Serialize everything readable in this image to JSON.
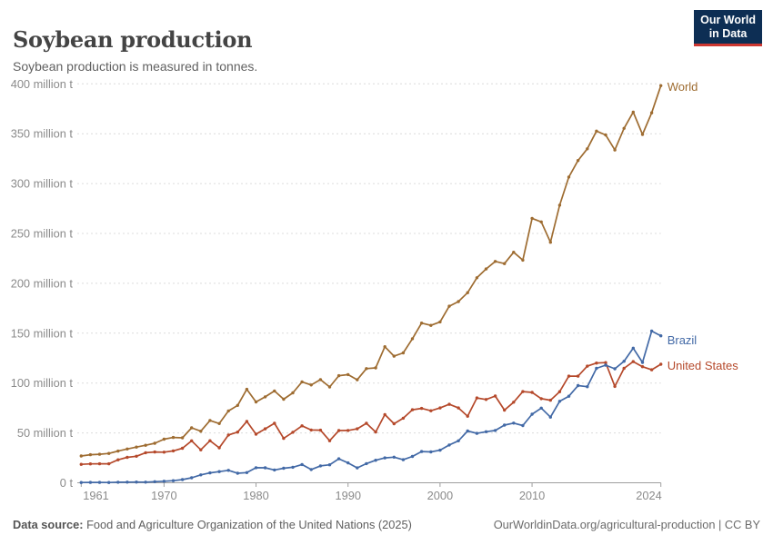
{
  "chart_data": {
    "type": "line",
    "title": "Soybean production",
    "subtitle": "Soybean production is measured in tonnes.",
    "xlabel": "",
    "ylabel": "tonnes",
    "ylim": [
      0,
      400000000
    ],
    "grid": "horizontal-dashed",
    "legend_position": "line-end-labels-right",
    "y_ticks": [
      {
        "value": 0,
        "label": "0 t"
      },
      {
        "value": 50,
        "label": "50 million t"
      },
      {
        "value": 100,
        "label": "100 million t"
      },
      {
        "value": 150,
        "label": "150 million t"
      },
      {
        "value": 200,
        "label": "200 million t"
      },
      {
        "value": 250,
        "label": "250 million t"
      },
      {
        "value": 300,
        "label": "300 million t"
      },
      {
        "value": 350,
        "label": "350 million t"
      },
      {
        "value": 400,
        "label": "400 million t"
      }
    ],
    "x_ticks": [
      1961,
      1970,
      1980,
      1990,
      2000,
      2010,
      2024
    ],
    "x": [
      1961,
      1962,
      1963,
      1964,
      1965,
      1966,
      1967,
      1968,
      1969,
      1970,
      1971,
      1972,
      1973,
      1974,
      1975,
      1976,
      1977,
      1978,
      1979,
      1980,
      1981,
      1982,
      1983,
      1984,
      1985,
      1986,
      1987,
      1988,
      1989,
      1990,
      1991,
      1992,
      1993,
      1994,
      1995,
      1996,
      1997,
      1998,
      1999,
      2000,
      2001,
      2002,
      2003,
      2004,
      2005,
      2006,
      2007,
      2008,
      2009,
      2010,
      2011,
      2012,
      2013,
      2014,
      2015,
      2016,
      2017,
      2018,
      2019,
      2020,
      2021,
      2022,
      2023,
      2024
    ],
    "units": "million tonnes",
    "series": [
      {
        "name": "World",
        "color": "#9E6C31",
        "values": [
          26.88,
          28.13,
          28.62,
          29.44,
          31.77,
          33.89,
          35.78,
          37.62,
          39.62,
          43.7,
          45.43,
          45.11,
          55.06,
          51.75,
          62.5,
          59.35,
          72.0,
          77.63,
          93.69,
          81.04,
          86.13,
          92.06,
          83.77,
          90.19,
          101.15,
          98.05,
          103.48,
          96.11,
          107.35,
          108.45,
          103.31,
          114.45,
          115.22,
          136.46,
          126.95,
          130.22,
          144.42,
          160.1,
          157.8,
          161.29,
          177.02,
          181.68,
          190.65,
          205.52,
          214.35,
          221.97,
          219.79,
          231.14,
          223.18,
          265.12,
          261.58,
          241.17,
          278.34,
          306.52,
          323.15,
          334.89,
          352.64,
          348.71,
          333.67,
          355.38,
          371.69,
          349.3,
          370.96,
          398.21
        ]
      },
      {
        "name": "United States",
        "color": "#B5492B",
        "values": [
          18.47,
          18.9,
          19.03,
          19.08,
          23.01,
          25.52,
          26.57,
          30.13,
          30.84,
          30.68,
          32.01,
          34.58,
          42.12,
          33.1,
          42.14,
          35.07,
          47.95,
          50.86,
          61.53,
          48.77,
          54.13,
          59.61,
          44.52,
          50.65,
          57.13,
          52.87,
          52.75,
          42.15,
          52.35,
          52.42,
          54.07,
          59.61,
          50.92,
          68.44,
          59.17,
          64.78,
          73.18,
          74.6,
          72.22,
          75.06,
          78.67,
          75.01,
          66.78,
          85.02,
          83.51,
          87.0,
          72.86,
          80.75,
          91.47,
          90.66,
          84.29,
          82.79,
          91.39,
          106.88,
          106.95,
          116.93,
          120.07,
          120.51,
          96.67,
          114.75,
          121.53,
          116.38,
          113.34,
          118.84
        ]
      },
      {
        "name": "Brazil",
        "color": "#4269A6",
        "values": [
          0.27,
          0.35,
          0.32,
          0.3,
          0.52,
          0.6,
          0.72,
          0.65,
          1.06,
          1.51,
          2.08,
          3.22,
          5.01,
          7.88,
          9.89,
          11.23,
          12.51,
          9.54,
          10.24,
          15.16,
          15.01,
          12.84,
          14.58,
          15.54,
          18.28,
          13.33,
          16.97,
          18.02,
          24.05,
          19.9,
          14.94,
          19.21,
          22.59,
          24.93,
          25.68,
          23.17,
          26.39,
          31.31,
          30.99,
          32.73,
          37.91,
          42.11,
          51.92,
          49.55,
          51.18,
          52.46,
          57.86,
          59.83,
          57.35,
          68.76,
          74.82,
          65.85,
          81.72,
          86.76,
          97.46,
          96.39,
          114.73,
          117.91,
          114.32,
          121.82,
          134.93,
          120.7,
          152.14,
          147.38
        ]
      }
    ]
  },
  "logo": {
    "line1": "Our World",
    "line2": "in Data",
    "bg_color": "#0d2e54",
    "accent_color": "#cd3731"
  },
  "footer": {
    "source_label": "Data source:",
    "source_text": " Food and Agriculture Organization of the United Nations (2025)",
    "link": "OurWorldinData.org/agricultural-production",
    "separator": " | ",
    "license": "CC BY"
  }
}
